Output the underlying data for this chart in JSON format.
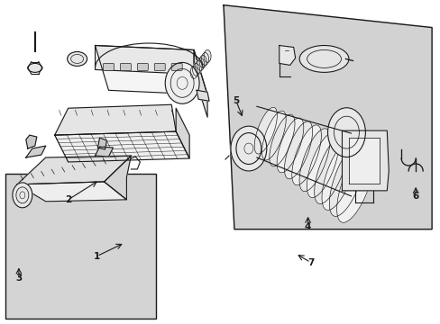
{
  "bg_color": "#ffffff",
  "line_color": "#1a1a1a",
  "panel_color": "#d5d5d5",
  "part_fill": "#f2f2f2",
  "part_fill2": "#e5e5e5",
  "part_fill3": "#d8d8d8",
  "figsize": [
    4.89,
    3.6
  ],
  "dpi": 100
}
